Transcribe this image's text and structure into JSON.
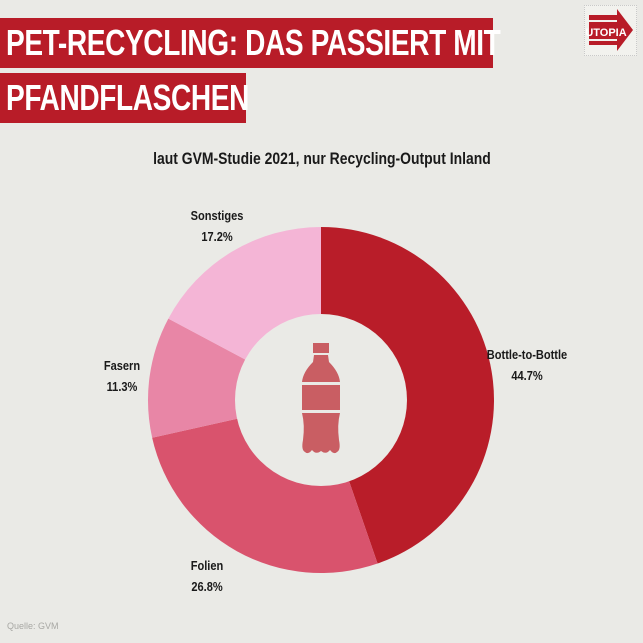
{
  "header": {
    "title_line1": "PET-RECYCLING: DAS PASSIERT MIT",
    "title_line2": "PFANDFLASCHEN",
    "logo_text": "UTOPIA",
    "logo_icon": "arrow-right-icon"
  },
  "colors": {
    "background": "#EAEAE6",
    "brand_red": "#B81C28",
    "bottle_icon": "#C95E63"
  },
  "chart_data": {
    "type": "pie",
    "variant": "donut",
    "title": "laut GVM-Studie 2021, nur Recycling-Output Inland",
    "categories": [
      "Bottle-to-Bottle",
      "Folien",
      "Fasern",
      "Sonstiges"
    ],
    "values": [
      44.7,
      26.8,
      11.3,
      17.2
    ],
    "unit": "%",
    "colors": [
      "#B91D29",
      "#D9536D",
      "#E886A6",
      "#F4B5D6"
    ],
    "start_angle": "12 o'clock",
    "direction": "clockwise",
    "center_icon": "bottle-icon",
    "labels": [
      {
        "name": "Bottle-to-Bottle",
        "value": "44.7%"
      },
      {
        "name": "Folien",
        "value": "26.8%"
      },
      {
        "name": "Fasern",
        "value": "11.3%"
      },
      {
        "name": "Sonstiges",
        "value": "17.2%"
      }
    ]
  },
  "footer": {
    "source": "Quelle: GVM"
  }
}
